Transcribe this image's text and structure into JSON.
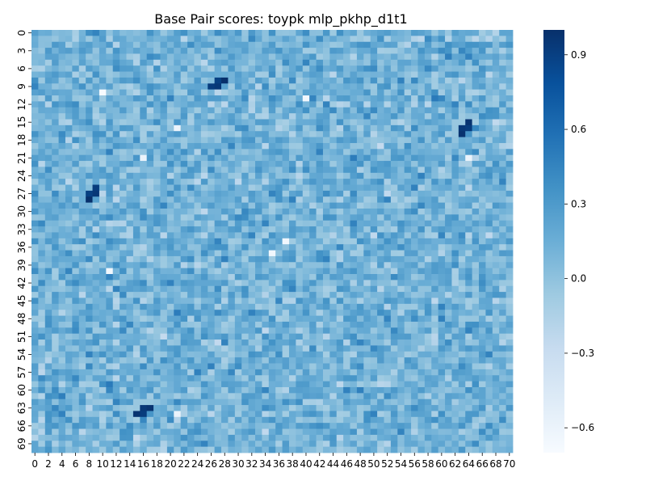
{
  "chart_data": {
    "type": "heatmap",
    "title": "Base Pair scores: toypk mlp_pkhp_d1t1",
    "xlabel": "",
    "ylabel": "",
    "rows": 71,
    "cols": 71,
    "x_tick_labels": [
      "0",
      "2",
      "4",
      "6",
      "8",
      "10",
      "12",
      "14",
      "16",
      "18",
      "20",
      "22",
      "24",
      "26",
      "28",
      "30",
      "32",
      "34",
      "36",
      "38",
      "40",
      "42",
      "44",
      "46",
      "48",
      "50",
      "52",
      "54",
      "56",
      "58",
      "60",
      "62",
      "64",
      "66",
      "68",
      "70"
    ],
    "y_tick_labels": [
      "0",
      "3",
      "6",
      "9",
      "12",
      "15",
      "18",
      "21",
      "24",
      "27",
      "30",
      "33",
      "36",
      "39",
      "42",
      "45",
      "48",
      "51",
      "54",
      "57",
      "60",
      "63",
      "66",
      "69"
    ],
    "value_range": [
      -0.7,
      1.0
    ],
    "colorbar": {
      "colormap": "Blues",
      "ticks": [
        -0.6,
        -0.3,
        0.0,
        0.3,
        0.6,
        0.9
      ],
      "tick_labels": [
        "−0.6",
        "−0.3",
        "0.0",
        "0.3",
        "0.6",
        "0.9"
      ]
    },
    "grid": false,
    "note_values": "Values approximated; notable peaks listed in highlights",
    "highlights": [
      {
        "row": 8,
        "col": 28,
        "value": 1.0
      },
      {
        "row": 9,
        "col": 27,
        "value": 0.95
      },
      {
        "row": 15,
        "col": 64,
        "value": 0.98
      },
      {
        "row": 16,
        "col": 63,
        "value": 0.95
      },
      {
        "row": 26,
        "col": 9,
        "value": 0.92
      },
      {
        "row": 27,
        "col": 8,
        "value": 0.9
      },
      {
        "row": 63,
        "col": 17,
        "value": 0.98
      },
      {
        "row": 64,
        "col": 16,
        "value": 0.92
      },
      {
        "row": 10,
        "col": 10,
        "value": -0.7
      },
      {
        "row": 11,
        "col": 40,
        "value": -0.65
      },
      {
        "row": 35,
        "col": 37,
        "value": -0.65
      },
      {
        "row": 21,
        "col": 16,
        "value": -0.6
      },
      {
        "row": 21,
        "col": 64,
        "value": -0.6
      }
    ]
  }
}
